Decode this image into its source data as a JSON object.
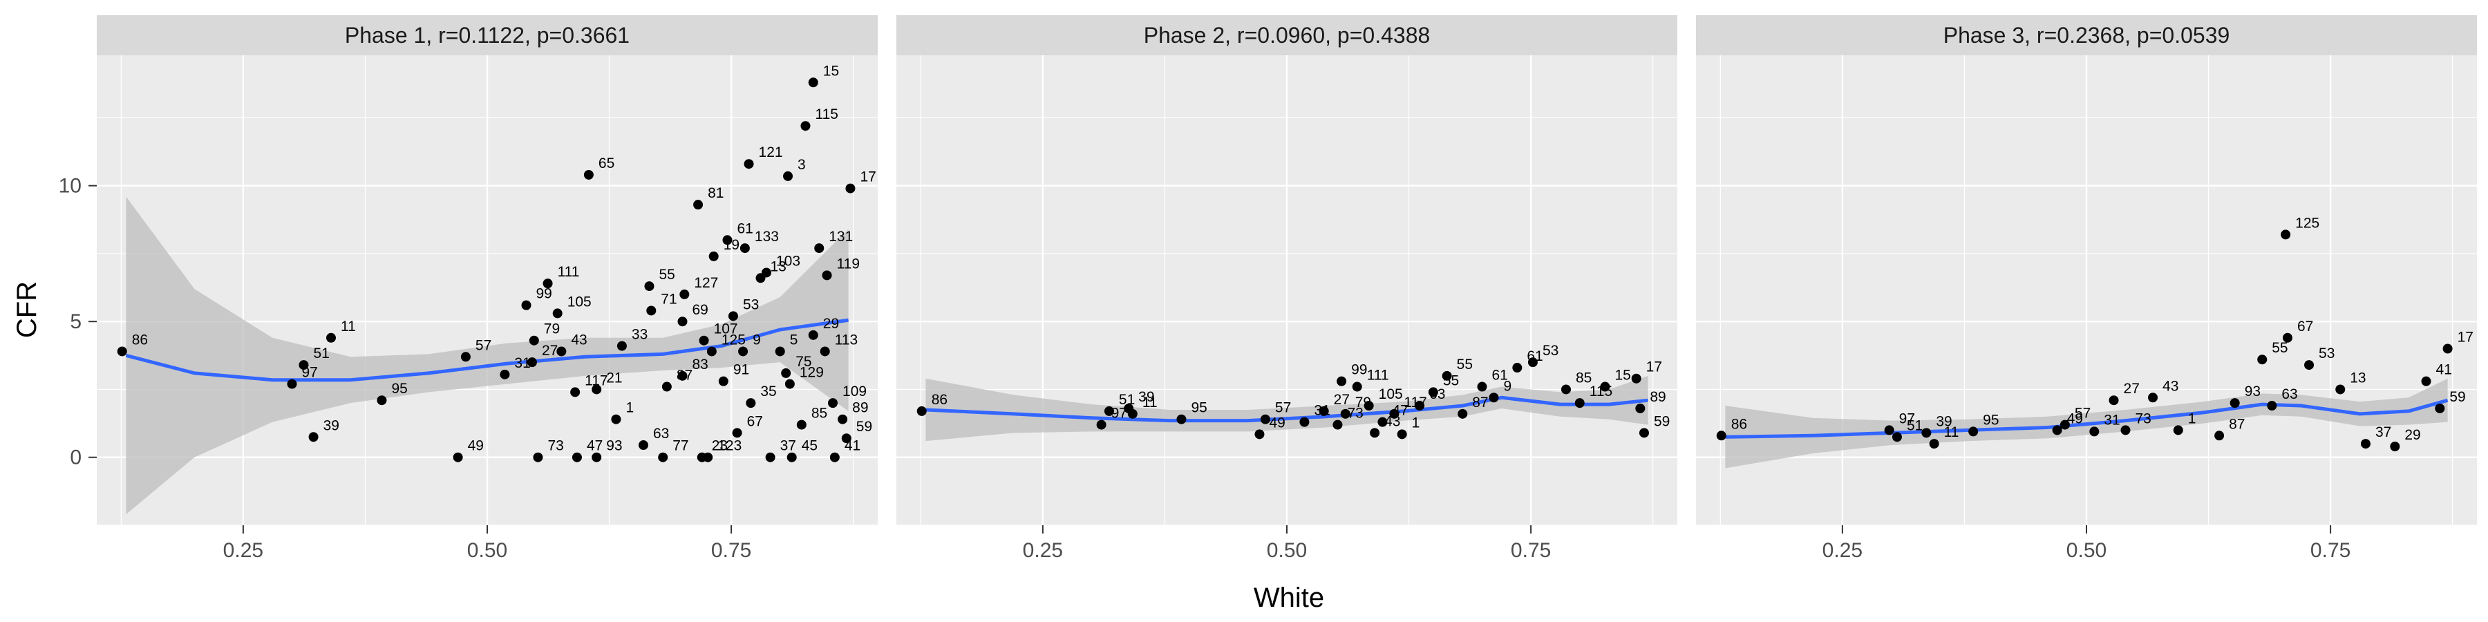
{
  "chart_data": {
    "type": "scatter",
    "x_label": "White",
    "y_label": "CFR",
    "x_range": [
      0.1,
      0.9
    ],
    "y_range": [
      -2.5,
      14.8
    ],
    "x_ticks": [
      0.25,
      0.5,
      0.75
    ],
    "x_tick_labels": [
      "0.25",
      "0.50",
      "0.75"
    ],
    "y_ticks": [
      0,
      5,
      10
    ],
    "y_tick_labels": [
      "0",
      "5",
      "10"
    ],
    "grid": true,
    "smooth_color": "#3366FF",
    "ribbon_color": "#BDBDBD",
    "panel_bg": "#EBEBEB",
    "strip_bg": "#D9D9D9",
    "panels": [
      {
        "title": "Phase 1, r=0.1122, p=0.3661",
        "smooth": [
          [
            0.13,
            3.75
          ],
          [
            0.2,
            3.1
          ],
          [
            0.28,
            2.85
          ],
          [
            0.36,
            2.85
          ],
          [
            0.44,
            3.1
          ],
          [
            0.52,
            3.45
          ],
          [
            0.6,
            3.7
          ],
          [
            0.68,
            3.8
          ],
          [
            0.74,
            4.1
          ],
          [
            0.8,
            4.7
          ],
          [
            0.87,
            5.05
          ]
        ],
        "ribbon_upper": [
          [
            0.13,
            9.6
          ],
          [
            0.2,
            6.2
          ],
          [
            0.28,
            4.4
          ],
          [
            0.36,
            3.7
          ],
          [
            0.44,
            3.8
          ],
          [
            0.52,
            4.2
          ],
          [
            0.6,
            4.4
          ],
          [
            0.68,
            4.4
          ],
          [
            0.74,
            4.9
          ],
          [
            0.8,
            5.9
          ],
          [
            0.87,
            8.4
          ]
        ],
        "ribbon_lower": [
          [
            0.13,
            -2.1
          ],
          [
            0.2,
            0.0
          ],
          [
            0.28,
            1.3
          ],
          [
            0.36,
            2.0
          ],
          [
            0.44,
            2.4
          ],
          [
            0.52,
            2.7
          ],
          [
            0.6,
            3.0
          ],
          [
            0.68,
            3.2
          ],
          [
            0.74,
            3.3
          ],
          [
            0.8,
            3.5
          ],
          [
            0.87,
            1.7
          ]
        ],
        "points": [
          {
            "x": 0.126,
            "y": 3.9,
            "label": "86"
          },
          {
            "x": 0.3,
            "y": 2.7,
            "label": "97"
          },
          {
            "x": 0.312,
            "y": 3.4,
            "label": "51"
          },
          {
            "x": 0.34,
            "y": 4.4,
            "label": "11"
          },
          {
            "x": 0.322,
            "y": 0.75,
            "label": "39"
          },
          {
            "x": 0.392,
            "y": 2.1,
            "label": "95"
          },
          {
            "x": 0.47,
            "y": 0.0,
            "label": "49"
          },
          {
            "x": 0.478,
            "y": 3.7,
            "label": "57"
          },
          {
            "x": 0.518,
            "y": 3.05,
            "label": "31"
          },
          {
            "x": 0.54,
            "y": 5.6,
            "label": "99"
          },
          {
            "x": 0.548,
            "y": 4.3,
            "label": "79"
          },
          {
            "x": 0.552,
            "y": 0.0,
            "label": "73"
          },
          {
            "x": 0.562,
            "y": 6.4,
            "label": "111"
          },
          {
            "x": 0.572,
            "y": 5.3,
            "label": "105"
          },
          {
            "x": 0.576,
            "y": 3.9,
            "label": "43"
          },
          {
            "x": 0.546,
            "y": 3.5,
            "label": "27"
          },
          {
            "x": 0.592,
            "y": 0.0,
            "label": "47"
          },
          {
            "x": 0.59,
            "y": 2.4,
            "label": "117"
          },
          {
            "x": 0.612,
            "y": 2.5,
            "label": "21"
          },
          {
            "x": 0.604,
            "y": 10.4,
            "label": "65"
          },
          {
            "x": 0.638,
            "y": 4.1,
            "label": "33"
          },
          {
            "x": 0.66,
            "y": 0.45,
            "label": "63"
          },
          {
            "x": 0.612,
            "y": 0.0,
            "label": "93"
          },
          {
            "x": 0.632,
            "y": 1.4,
            "label": "1"
          },
          {
            "x": 0.668,
            "y": 5.4,
            "label": "71"
          },
          {
            "x": 0.666,
            "y": 6.3,
            "label": "55"
          },
          {
            "x": 0.68,
            "y": 0.0,
            "label": "77"
          },
          {
            "x": 0.684,
            "y": 2.6,
            "label": "87"
          },
          {
            "x": 0.7,
            "y": 5.0,
            "label": "69"
          },
          {
            "x": 0.702,
            "y": 6.0,
            "label": "127"
          },
          {
            "x": 0.716,
            "y": 9.3,
            "label": "81"
          },
          {
            "x": 0.722,
            "y": 4.3,
            "label": "107"
          },
          {
            "x": 0.7,
            "y": 3.0,
            "label": "83"
          },
          {
            "x": 0.72,
            "y": 0.0,
            "label": "23"
          },
          {
            "x": 0.732,
            "y": 7.4,
            "label": "19"
          },
          {
            "x": 0.746,
            "y": 8.0,
            "label": "61"
          },
          {
            "x": 0.73,
            "y": 3.9,
            "label": "125"
          },
          {
            "x": 0.726,
            "y": 0.0,
            "label": "123"
          },
          {
            "x": 0.742,
            "y": 2.8,
            "label": "91"
          },
          {
            "x": 0.752,
            "y": 5.2,
            "label": "53"
          },
          {
            "x": 0.756,
            "y": 0.9,
            "label": "67"
          },
          {
            "x": 0.764,
            "y": 7.7,
            "label": "133"
          },
          {
            "x": 0.768,
            "y": 10.8,
            "label": "121"
          },
          {
            "x": 0.762,
            "y": 3.9,
            "label": "9"
          },
          {
            "x": 0.786,
            "y": 6.8,
            "label": "103"
          },
          {
            "x": 0.77,
            "y": 2.0,
            "label": "35"
          },
          {
            "x": 0.78,
            "y": 6.6,
            "label": "13"
          },
          {
            "x": 0.79,
            "y": 0.0,
            "label": "37"
          },
          {
            "x": 0.808,
            "y": 10.35,
            "label": "3"
          },
          {
            "x": 0.8,
            "y": 3.9,
            "label": "5"
          },
          {
            "x": 0.806,
            "y": 3.1,
            "label": "75"
          },
          {
            "x": 0.81,
            "y": 2.7,
            "label": "129"
          },
          {
            "x": 0.812,
            "y": 0.0,
            "label": "45"
          },
          {
            "x": 0.822,
            "y": 1.2,
            "label": "85"
          },
          {
            "x": 0.826,
            "y": 12.2,
            "label": "115"
          },
          {
            "x": 0.834,
            "y": 13.8,
            "label": "15"
          },
          {
            "x": 0.834,
            "y": 4.5,
            "label": "29"
          },
          {
            "x": 0.84,
            "y": 7.7,
            "label": "131"
          },
          {
            "x": 0.848,
            "y": 6.7,
            "label": "119"
          },
          {
            "x": 0.846,
            "y": 3.9,
            "label": "113"
          },
          {
            "x": 0.854,
            "y": 2.0,
            "label": "109"
          },
          {
            "x": 0.856,
            "y": 0.0,
            "label": "41"
          },
          {
            "x": 0.864,
            "y": 1.4,
            "label": "89"
          },
          {
            "x": 0.868,
            "y": 0.7,
            "label": "59"
          },
          {
            "x": 0.872,
            "y": 9.9,
            "label": "17"
          }
        ]
      },
      {
        "title": "Phase 2, r=0.0960, p=0.4388",
        "smooth": [
          [
            0.13,
            1.75
          ],
          [
            0.22,
            1.6
          ],
          [
            0.3,
            1.45
          ],
          [
            0.38,
            1.35
          ],
          [
            0.46,
            1.35
          ],
          [
            0.54,
            1.5
          ],
          [
            0.62,
            1.7
          ],
          [
            0.68,
            1.9
          ],
          [
            0.72,
            2.2
          ],
          [
            0.78,
            1.95
          ],
          [
            0.83,
            1.95
          ],
          [
            0.87,
            2.1
          ]
        ],
        "ribbon_upper": [
          [
            0.13,
            2.9
          ],
          [
            0.22,
            2.3
          ],
          [
            0.3,
            1.95
          ],
          [
            0.38,
            1.75
          ],
          [
            0.46,
            1.75
          ],
          [
            0.54,
            1.9
          ],
          [
            0.62,
            2.05
          ],
          [
            0.68,
            2.3
          ],
          [
            0.72,
            2.6
          ],
          [
            0.78,
            2.4
          ],
          [
            0.83,
            2.5
          ],
          [
            0.87,
            3.0
          ]
        ],
        "ribbon_lower": [
          [
            0.13,
            0.6
          ],
          [
            0.22,
            0.9
          ],
          [
            0.3,
            0.95
          ],
          [
            0.38,
            0.95
          ],
          [
            0.46,
            0.95
          ],
          [
            0.54,
            1.1
          ],
          [
            0.62,
            1.35
          ],
          [
            0.68,
            1.5
          ],
          [
            0.72,
            1.8
          ],
          [
            0.78,
            1.5
          ],
          [
            0.83,
            1.4
          ],
          [
            0.87,
            1.2
          ]
        ],
        "points": [
          {
            "x": 0.126,
            "y": 1.7,
            "label": "86"
          },
          {
            "x": 0.31,
            "y": 1.2,
            "label": "97"
          },
          {
            "x": 0.318,
            "y": 1.7,
            "label": "51"
          },
          {
            "x": 0.338,
            "y": 1.8,
            "label": "39"
          },
          {
            "x": 0.342,
            "y": 1.6,
            "label": "11"
          },
          {
            "x": 0.392,
            "y": 1.4,
            "label": "95"
          },
          {
            "x": 0.472,
            "y": 0.85,
            "label": "49"
          },
          {
            "x": 0.478,
            "y": 1.4,
            "label": "57"
          },
          {
            "x": 0.518,
            "y": 1.3,
            "label": "31"
          },
          {
            "x": 0.538,
            "y": 1.7,
            "label": "27"
          },
          {
            "x": 0.552,
            "y": 1.2,
            "label": "73"
          },
          {
            "x": 0.556,
            "y": 2.8,
            "label": "99"
          },
          {
            "x": 0.56,
            "y": 1.6,
            "label": "79"
          },
          {
            "x": 0.572,
            "y": 2.6,
            "label": "111"
          },
          {
            "x": 0.584,
            "y": 1.9,
            "label": "105"
          },
          {
            "x": 0.59,
            "y": 0.9,
            "label": "43"
          },
          {
            "x": 0.598,
            "y": 1.3,
            "label": "47"
          },
          {
            "x": 0.61,
            "y": 1.6,
            "label": "117"
          },
          {
            "x": 0.618,
            "y": 0.85,
            "label": "1"
          },
          {
            "x": 0.636,
            "y": 1.9,
            "label": "63"
          },
          {
            "x": 0.65,
            "y": 2.4,
            "label": "55"
          },
          {
            "x": 0.664,
            "y": 3.0,
            "label": "55"
          },
          {
            "x": 0.68,
            "y": 1.6,
            "label": "87"
          },
          {
            "x": 0.7,
            "y": 2.6,
            "label": "61"
          },
          {
            "x": 0.712,
            "y": 2.2,
            "label": "9"
          },
          {
            "x": 0.736,
            "y": 3.3,
            "label": "61"
          },
          {
            "x": 0.752,
            "y": 3.5,
            "label": "53"
          },
          {
            "x": 0.786,
            "y": 2.5,
            "label": "85"
          },
          {
            "x": 0.8,
            "y": 2.0,
            "label": "115"
          },
          {
            "x": 0.826,
            "y": 2.6,
            "label": "15"
          },
          {
            "x": 0.858,
            "y": 2.9,
            "label": "17"
          },
          {
            "x": 0.862,
            "y": 1.8,
            "label": "89"
          },
          {
            "x": 0.866,
            "y": 0.9,
            "label": "59"
          }
        ]
      },
      {
        "title": "Phase 3, r=0.2368, p=0.0539",
        "smooth": [
          [
            0.13,
            0.75
          ],
          [
            0.22,
            0.8
          ],
          [
            0.3,
            0.9
          ],
          [
            0.38,
            1.0
          ],
          [
            0.46,
            1.1
          ],
          [
            0.54,
            1.35
          ],
          [
            0.62,
            1.65
          ],
          [
            0.68,
            1.95
          ],
          [
            0.72,
            1.9
          ],
          [
            0.78,
            1.6
          ],
          [
            0.83,
            1.7
          ],
          [
            0.87,
            2.1
          ]
        ],
        "ribbon_upper": [
          [
            0.13,
            1.9
          ],
          [
            0.22,
            1.45
          ],
          [
            0.3,
            1.35
          ],
          [
            0.38,
            1.4
          ],
          [
            0.46,
            1.5
          ],
          [
            0.54,
            1.75
          ],
          [
            0.62,
            2.05
          ],
          [
            0.68,
            2.35
          ],
          [
            0.72,
            2.3
          ],
          [
            0.78,
            2.05
          ],
          [
            0.83,
            2.2
          ],
          [
            0.87,
            2.9
          ]
        ],
        "ribbon_lower": [
          [
            0.13,
            -0.4
          ],
          [
            0.22,
            0.15
          ],
          [
            0.3,
            0.45
          ],
          [
            0.38,
            0.6
          ],
          [
            0.46,
            0.7
          ],
          [
            0.54,
            0.95
          ],
          [
            0.62,
            1.25
          ],
          [
            0.68,
            1.55
          ],
          [
            0.72,
            1.5
          ],
          [
            0.78,
            1.15
          ],
          [
            0.83,
            1.2
          ],
          [
            0.87,
            1.3
          ]
        ],
        "points": [
          {
            "x": 0.126,
            "y": 0.8,
            "label": "86"
          },
          {
            "x": 0.298,
            "y": 1.0,
            "label": "97"
          },
          {
            "x": 0.306,
            "y": 0.75,
            "label": "51"
          },
          {
            "x": 0.336,
            "y": 0.9,
            "label": "39"
          },
          {
            "x": 0.344,
            "y": 0.5,
            "label": "11"
          },
          {
            "x": 0.384,
            "y": 0.95,
            "label": "95"
          },
          {
            "x": 0.47,
            "y": 1.0,
            "label": "49"
          },
          {
            "x": 0.478,
            "y": 1.2,
            "label": "57"
          },
          {
            "x": 0.508,
            "y": 0.95,
            "label": "31"
          },
          {
            "x": 0.528,
            "y": 2.1,
            "label": "27"
          },
          {
            "x": 0.54,
            "y": 1.0,
            "label": "73"
          },
          {
            "x": 0.568,
            "y": 2.2,
            "label": "43"
          },
          {
            "x": 0.594,
            "y": 1.0,
            "label": "1"
          },
          {
            "x": 0.636,
            "y": 0.8,
            "label": "87"
          },
          {
            "x": 0.652,
            "y": 2.0,
            "label": "93"
          },
          {
            "x": 0.68,
            "y": 3.6,
            "label": "55"
          },
          {
            "x": 0.69,
            "y": 1.9,
            "label": "63"
          },
          {
            "x": 0.706,
            "y": 4.4,
            "label": "67"
          },
          {
            "x": 0.704,
            "y": 8.2,
            "label": "125"
          },
          {
            "x": 0.728,
            "y": 3.4,
            "label": "53"
          },
          {
            "x": 0.76,
            "y": 2.5,
            "label": "13"
          },
          {
            "x": 0.786,
            "y": 0.5,
            "label": "37"
          },
          {
            "x": 0.816,
            "y": 0.4,
            "label": "29"
          },
          {
            "x": 0.848,
            "y": 2.8,
            "label": "41"
          },
          {
            "x": 0.862,
            "y": 1.8,
            "label": "59"
          },
          {
            "x": 0.87,
            "y": 4.0,
            "label": "17"
          }
        ]
      }
    ]
  }
}
